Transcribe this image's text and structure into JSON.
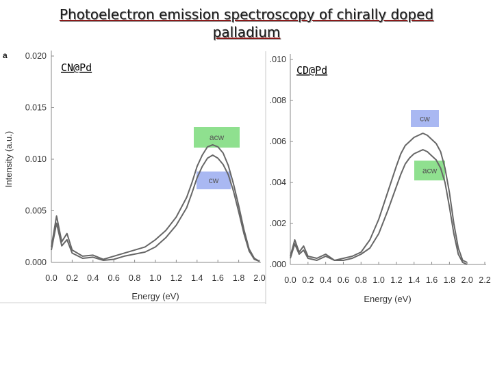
{
  "title_line1": "Photoelectron emission spectroscopy of chirally doped",
  "title_line2": "palladium",
  "colors": {
    "acw_box": "#8fe08f",
    "cw_box": "#a9b8f2",
    "curve": "#666666",
    "frame": "#888888"
  },
  "chart_data": [
    {
      "type": "line",
      "panel_letter": "a",
      "inset_label": "CN@Pd",
      "xlabel": "Energy (eV)",
      "ylabel": "Intensity (a.u.)",
      "xlim": [
        0.0,
        2.0
      ],
      "ylim": [
        0.0,
        0.02
      ],
      "xticks": [
        "0.0",
        "0.2",
        "0.4",
        "0.6",
        "0.8",
        "1.0",
        "1.2",
        "1.4",
        "1.6",
        "1.8",
        "2.0"
      ],
      "yticks": [
        "0.000",
        "0.005",
        "0.010",
        "0.015",
        "0.020"
      ],
      "legend": [
        "acw",
        "cw"
      ],
      "series": [
        {
          "name": "acw",
          "x": [
            0.0,
            0.05,
            0.1,
            0.15,
            0.2,
            0.3,
            0.4,
            0.5,
            0.6,
            0.7,
            0.8,
            0.9,
            1.0,
            1.1,
            1.2,
            1.3,
            1.35,
            1.4,
            1.45,
            1.5,
            1.55,
            1.6,
            1.65,
            1.7,
            1.75,
            1.8,
            1.85,
            1.9,
            1.95,
            2.0
          ],
          "y": [
            0.0015,
            0.0045,
            0.002,
            0.0028,
            0.0012,
            0.0006,
            0.0007,
            0.0003,
            0.0006,
            0.0009,
            0.0012,
            0.0015,
            0.0022,
            0.0031,
            0.0044,
            0.0063,
            0.0077,
            0.0093,
            0.0104,
            0.0112,
            0.0114,
            0.0112,
            0.0106,
            0.0094,
            0.0076,
            0.0055,
            0.0032,
            0.0013,
            0.0004,
            0.0001
          ]
        },
        {
          "name": "cw",
          "x": [
            0.0,
            0.05,
            0.1,
            0.15,
            0.2,
            0.3,
            0.4,
            0.5,
            0.6,
            0.7,
            0.8,
            0.9,
            1.0,
            1.1,
            1.2,
            1.3,
            1.35,
            1.4,
            1.45,
            1.5,
            1.55,
            1.6,
            1.65,
            1.7,
            1.75,
            1.8,
            1.85,
            1.9,
            1.95,
            2.0
          ],
          "y": [
            0.0012,
            0.0038,
            0.0016,
            0.0022,
            0.0009,
            0.0004,
            0.0005,
            0.0002,
            0.0003,
            0.0006,
            0.0008,
            0.001,
            0.0015,
            0.0024,
            0.0036,
            0.0053,
            0.0067,
            0.0082,
            0.0093,
            0.0101,
            0.0104,
            0.0101,
            0.0095,
            0.0085,
            0.0069,
            0.0049,
            0.0028,
            0.0011,
            0.0003,
            0.0001
          ]
        }
      ]
    },
    {
      "type": "line",
      "panel_letter": "",
      "inset_label": "CD@Pd",
      "xlabel": "Energy (eV)",
      "ylabel": "",
      "xlim": [
        0.0,
        2.2
      ],
      "ylim": [
        0.0,
        0.01
      ],
      "xticks": [
        "0.0",
        "0.2",
        "0.4",
        "0.6",
        "0.8",
        "1.0",
        "1.2",
        "1.4",
        "1.6",
        "1.8",
        "2.0",
        "2.2"
      ],
      "yticks": [
        ".000",
        ".002",
        ".004",
        ".006",
        ".008",
        ".010"
      ],
      "legend": [
        "cw",
        "acw"
      ],
      "series": [
        {
          "name": "cw",
          "x": [
            0.0,
            0.05,
            0.1,
            0.15,
            0.2,
            0.3,
            0.4,
            0.5,
            0.6,
            0.7,
            0.8,
            0.9,
            1.0,
            1.1,
            1.2,
            1.25,
            1.3,
            1.35,
            1.4,
            1.45,
            1.5,
            1.55,
            1.6,
            1.65,
            1.7,
            1.75,
            1.8,
            1.85,
            1.9,
            1.95,
            2.0
          ],
          "y": [
            0.0004,
            0.0012,
            0.0006,
            0.0009,
            0.0004,
            0.0003,
            0.0005,
            0.0002,
            0.0003,
            0.0004,
            0.0006,
            0.0012,
            0.0022,
            0.0035,
            0.0048,
            0.0054,
            0.0058,
            0.006,
            0.0062,
            0.0063,
            0.0064,
            0.0063,
            0.0061,
            0.0059,
            0.0055,
            0.0047,
            0.0035,
            0.002,
            0.0008,
            0.0002,
            0.0001
          ]
        },
        {
          "name": "acw",
          "x": [
            0.0,
            0.05,
            0.1,
            0.15,
            0.2,
            0.3,
            0.4,
            0.5,
            0.6,
            0.7,
            0.8,
            0.9,
            1.0,
            1.1,
            1.2,
            1.25,
            1.3,
            1.35,
            1.4,
            1.45,
            1.5,
            1.55,
            1.6,
            1.65,
            1.7,
            1.75,
            1.8,
            1.85,
            1.9,
            1.95,
            2.0
          ],
          "y": [
            0.0003,
            0.001,
            0.0005,
            0.0007,
            0.0003,
            0.0002,
            0.0004,
            0.0002,
            0.0002,
            0.0003,
            0.0005,
            0.0008,
            0.0015,
            0.0026,
            0.0038,
            0.0044,
            0.0049,
            0.0052,
            0.0054,
            0.0055,
            0.0056,
            0.0055,
            0.0053,
            0.0051,
            0.0047,
            0.004,
            0.0028,
            0.0015,
            0.0005,
            0.0001,
            0.0
          ]
        }
      ]
    }
  ]
}
